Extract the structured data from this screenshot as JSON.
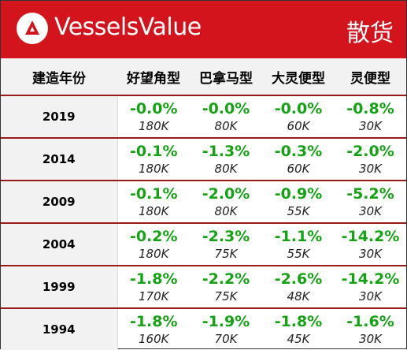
{
  "header": {
    "brand": "VesselsValue",
    "category": "散货",
    "logo_icon": "vesselsvalue-logo-icon",
    "bg_color": "#d3141c"
  },
  "table": {
    "columns": [
      "建造年份",
      "好望角型",
      "巴拿马型",
      "大灵便型",
      "灵便型"
    ],
    "rows": [
      {
        "year": "2019",
        "cells": [
          {
            "pct": "-0.0%",
            "val": "180K"
          },
          {
            "pct": "-0.0%",
            "val": "80K"
          },
          {
            "pct": "-0.0%",
            "val": "60K"
          },
          {
            "pct": "-0.8%",
            "val": "30K"
          }
        ]
      },
      {
        "year": "2014",
        "cells": [
          {
            "pct": "-0.1%",
            "val": "180K"
          },
          {
            "pct": "-1.3%",
            "val": "80K"
          },
          {
            "pct": "-0.3%",
            "val": "60K"
          },
          {
            "pct": "-2.0%",
            "val": "30K"
          }
        ]
      },
      {
        "year": "2009",
        "cells": [
          {
            "pct": "-0.1%",
            "val": "180K"
          },
          {
            "pct": "-2.0%",
            "val": "80K"
          },
          {
            "pct": "-0.9%",
            "val": "55K"
          },
          {
            "pct": "-5.2%",
            "val": "30K"
          }
        ]
      },
      {
        "year": "2004",
        "cells": [
          {
            "pct": "-0.2%",
            "val": "180K"
          },
          {
            "pct": "-2.3%",
            "val": "75K"
          },
          {
            "pct": "-1.1%",
            "val": "55K"
          },
          {
            "pct": "-14.2%",
            "val": "30K"
          }
        ]
      },
      {
        "year": "1999",
        "cells": [
          {
            "pct": "-1.8%",
            "val": "170K"
          },
          {
            "pct": "-2.2%",
            "val": "75K"
          },
          {
            "pct": "-2.6%",
            "val": "48K"
          },
          {
            "pct": "-14.2%",
            "val": "30K"
          }
        ]
      },
      {
        "year": "1994",
        "cells": [
          {
            "pct": "-1.8%",
            "val": "160K"
          },
          {
            "pct": "-1.9%",
            "val": "70K"
          },
          {
            "pct": "-1.8%",
            "val": "45K"
          },
          {
            "pct": "-1.6%",
            "val": "30K"
          }
        ]
      }
    ],
    "pct_color": "#15a315",
    "divider_color": "#9a1a1a"
  }
}
